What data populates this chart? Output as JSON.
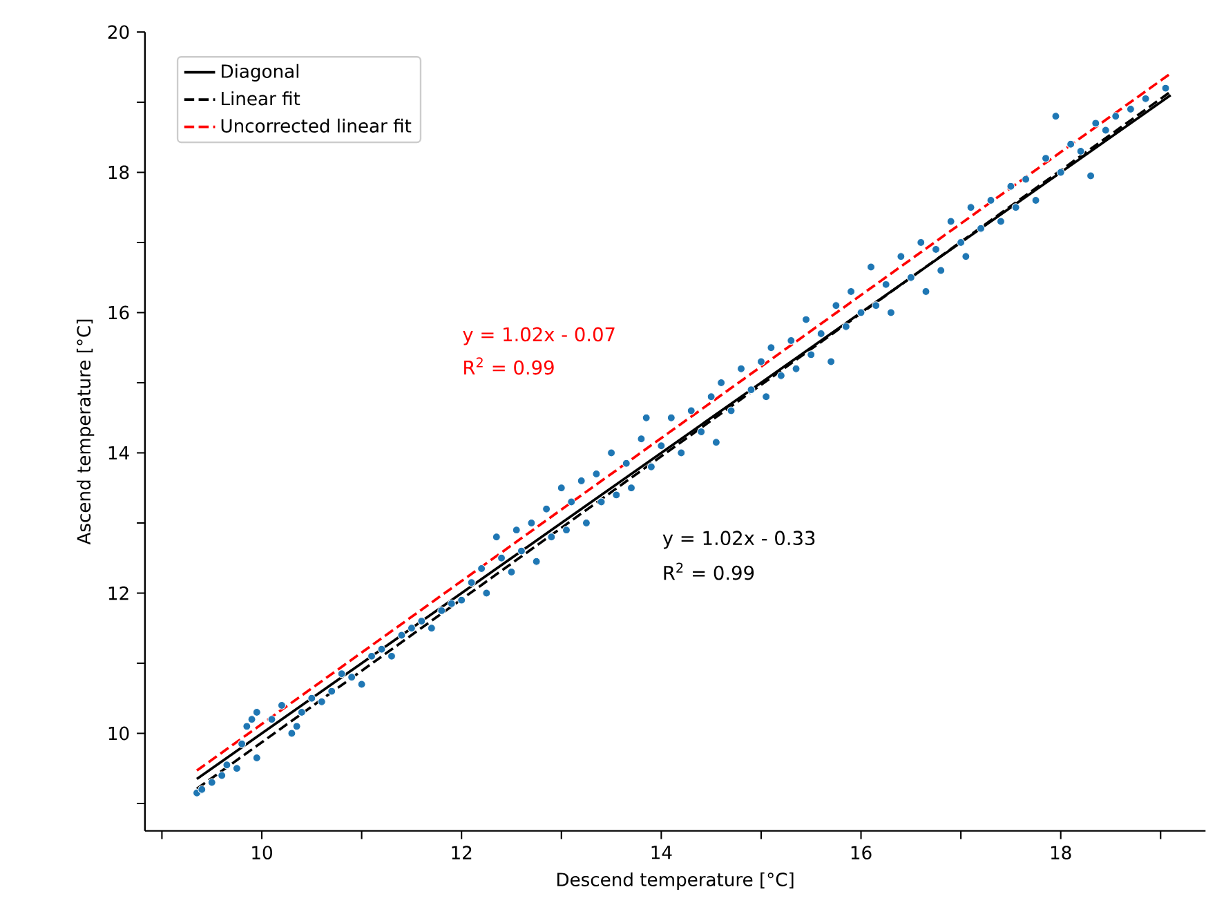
{
  "chart_data": {
    "type": "scatter",
    "xlabel": "Descend temperature [°C]",
    "ylabel": "Ascend temperature [°C]",
    "xlim": [
      8.83,
      19.45
    ],
    "ylim": [
      8.61,
      20
    ],
    "xticks": [
      {
        "value": 9,
        "label": null
      },
      10,
      {
        "value": 11,
        "label": null
      },
      12,
      {
        "value": 13,
        "label": null
      },
      14,
      {
        "value": 15,
        "label": null
      },
      16,
      {
        "value": 17,
        "label": null
      },
      18,
      {
        "value": 19,
        "label": null
      }
    ],
    "yticks": [
      {
        "value": 9,
        "label": null
      },
      10,
      {
        "value": 11,
        "label": null
      },
      12,
      {
        "value": 13,
        "label": null
      },
      14,
      {
        "value": 15,
        "label": null
      },
      16,
      {
        "value": 17,
        "label": null
      },
      18,
      {
        "value": 19,
        "label": null
      },
      20
    ],
    "legend": "top left",
    "grid": false,
    "series": [
      {
        "color": "#1f77b4",
        "marker": "circle",
        "x": [
          9.35,
          9.4,
          9.5,
          9.6,
          9.65,
          9.75,
          9.8,
          9.85,
          9.9,
          9.95,
          9.95,
          10.1,
          10.2,
          10.3,
          10.35,
          10.4,
          10.5,
          10.6,
          10.7,
          10.8,
          10.9,
          11.0,
          11.1,
          11.2,
          11.3,
          11.4,
          11.5,
          11.6,
          11.7,
          11.8,
          11.9,
          12.0,
          12.1,
          12.2,
          12.25,
          12.35,
          12.4,
          12.5,
          12.55,
          12.6,
          12.7,
          12.75,
          12.85,
          12.9,
          13.0,
          13.05,
          13.1,
          13.2,
          13.25,
          13.35,
          13.4,
          13.5,
          13.55,
          13.65,
          13.7,
          13.8,
          13.85,
          13.9,
          14.0,
          14.1,
          14.2,
          14.3,
          14.4,
          14.5,
          14.55,
          14.6,
          14.7,
          14.8,
          14.9,
          15.0,
          15.05,
          15.1,
          15.2,
          15.3,
          15.35,
          15.45,
          15.5,
          15.6,
          15.7,
          15.75,
          15.85,
          15.9,
          16.0,
          16.1,
          16.15,
          16.25,
          16.3,
          16.4,
          16.5,
          16.6,
          16.65,
          16.75,
          16.8,
          16.9,
          17.0,
          17.05,
          17.1,
          17.2,
          17.3,
          17.4,
          17.5,
          17.55,
          17.65,
          17.75,
          17.85,
          17.95,
          18.0,
          18.1,
          18.2,
          18.3,
          18.35,
          18.45,
          18.55,
          18.7,
          18.85,
          19.05
        ],
        "values": [
          9.15,
          9.2,
          9.3,
          9.4,
          9.55,
          9.5,
          9.85,
          10.1,
          10.2,
          10.3,
          9.65,
          10.2,
          10.4,
          10.0,
          10.1,
          10.3,
          10.5,
          10.45,
          10.6,
          10.85,
          10.8,
          10.7,
          11.1,
          11.2,
          11.1,
          11.4,
          11.5,
          11.6,
          11.5,
          11.75,
          11.85,
          11.9,
          12.15,
          12.35,
          12.0,
          12.8,
          12.5,
          12.3,
          12.9,
          12.6,
          13.0,
          12.45,
          13.2,
          12.8,
          13.5,
          12.9,
          13.3,
          13.6,
          13.0,
          13.7,
          13.3,
          14.0,
          13.4,
          13.85,
          13.5,
          14.2,
          14.5,
          13.8,
          14.1,
          14.5,
          14.0,
          14.6,
          14.3,
          14.8,
          14.15,
          15.0,
          14.6,
          15.2,
          14.9,
          15.3,
          14.8,
          15.5,
          15.1,
          15.6,
          15.2,
          15.9,
          15.4,
          15.7,
          15.3,
          16.1,
          15.8,
          16.3,
          16.0,
          16.65,
          16.1,
          16.4,
          16.0,
          16.8,
          16.5,
          17.0,
          16.3,
          16.9,
          16.6,
          17.3,
          17.0,
          16.8,
          17.5,
          17.2,
          17.6,
          17.3,
          17.8,
          17.5,
          17.9,
          17.6,
          18.2,
          18.8,
          18.0,
          18.4,
          18.3,
          17.95,
          18.7,
          18.6,
          18.8,
          18.9,
          19.05,
          19.2
        ]
      },
      {
        "type": "line",
        "name": "Diagonal",
        "color": "#000000",
        "line_style": "solid",
        "x": [
          9.35,
          19.1
        ],
        "values": [
          9.35,
          19.1
        ]
      },
      {
        "type": "line",
        "name": "Linear fit",
        "color": "#000000",
        "line_style": "dashed",
        "x": [
          9.35,
          19.1
        ],
        "values": [
          9.21,
          19.15
        ]
      },
      {
        "type": "line",
        "name": "Uncorrected linear fit",
        "color": "#ff0000",
        "line_style": "dashed",
        "x": [
          9.35,
          19.1
        ],
        "values": [
          9.47,
          19.41
        ]
      }
    ],
    "annotations": [
      "y = 1.02x - 0.07",
      "R$^{2}$ = 0.99",
      "y = 1.02x - 0.33",
      "R$^{2}$ = 0.99"
    ]
  }
}
